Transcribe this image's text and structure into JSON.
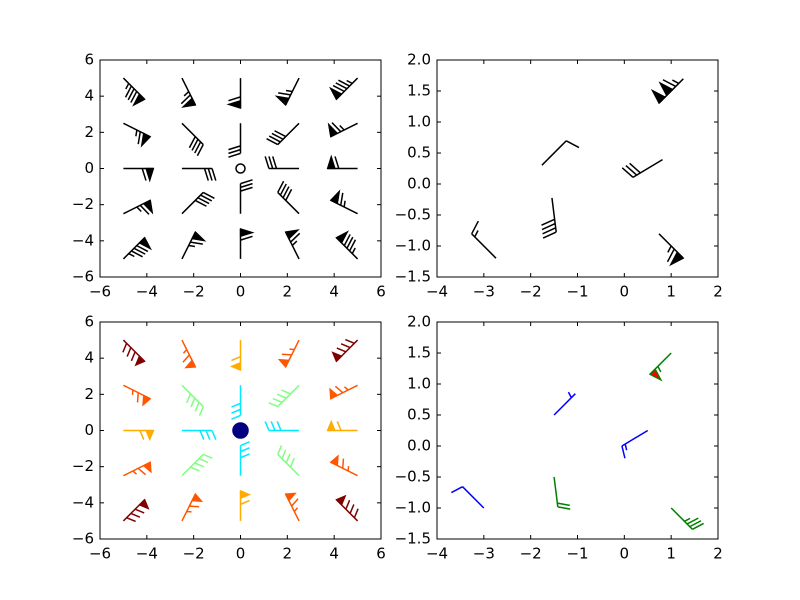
{
  "chart_data": [
    {
      "type": "barbs",
      "pivot": "tip",
      "length": 7,
      "color": "#000000",
      "flagcolor": "#000000",
      "rounding": true,
      "fill_empty": false,
      "flip": false,
      "sizes": {
        "spacing": 0.125,
        "height": 0.4,
        "width": 0.25,
        "emptybarb": 0.15
      },
      "increments": {
        "half": 5,
        "full": 10,
        "flag": 50
      },
      "x": [
        -5,
        -2.5,
        0,
        2.5,
        5,
        -5,
        -2.5,
        0,
        2.5,
        5,
        -5,
        -2.5,
        0,
        2.5,
        5,
        -5,
        -2.5,
        0,
        2.5,
        5,
        -5,
        -2.5,
        0,
        2.5,
        5
      ],
      "y": [
        -5,
        -5,
        -5,
        -5,
        -5,
        -2.5,
        -2.5,
        -2.5,
        -2.5,
        -2.5,
        0,
        0,
        0,
        0,
        0,
        2.5,
        2.5,
        2.5,
        2.5,
        2.5,
        5,
        5,
        5,
        5,
        5
      ],
      "u": [
        -60,
        -30,
        0,
        30,
        60,
        -60,
        -30,
        0,
        30,
        60,
        -60,
        -30,
        0,
        30,
        60,
        -60,
        -30,
        0,
        30,
        60,
        -60,
        -30,
        0,
        30,
        60
      ],
      "v": [
        -60,
        -60,
        -60,
        -60,
        -60,
        -30,
        -30,
        -30,
        -30,
        -30,
        0,
        0,
        0,
        0,
        0,
        30,
        30,
        30,
        30,
        30,
        60,
        60,
        60,
        60,
        60
      ],
      "xlim": [
        -6,
        6
      ],
      "ylim": [
        -6,
        6
      ],
      "xticks": [
        {
          "value": -6,
          "label": "−6"
        },
        {
          "value": -4,
          "label": "−4"
        },
        {
          "value": -2,
          "label": "−2"
        },
        0,
        2,
        4,
        6
      ],
      "yticks": [
        {
          "value": -6,
          "label": "−6"
        },
        {
          "value": -4,
          "label": "−4"
        },
        {
          "value": -2,
          "label": "−2"
        },
        0,
        2,
        4,
        6
      ]
    },
    {
      "type": "barbs",
      "pivot": "middle",
      "length": 8,
      "color": "#000000",
      "flagcolor": "#000000",
      "rounding": true,
      "fill_empty": false,
      "flip": false,
      "sizes": {
        "spacing": 0.125,
        "height": 0.4,
        "width": 0.25,
        "emptybarb": 0.15
      },
      "increments": {
        "half": 5,
        "full": 10,
        "flag": 50
      },
      "x": [
        -1.5,
        1,
        -3,
        1,
        0.5,
        -1.5
      ],
      "y": [
        0.5,
        -1,
        -1,
        1.5,
        0.25,
        -0.5
      ],
      "u": [
        -6,
        -46,
        11,
        80,
        25,
        -5
      ],
      "v": [
        -6,
        46,
        -11,
        80,
        15,
        40
      ],
      "xlim": [
        -4,
        2
      ],
      "ylim": [
        -1.5,
        2.0
      ],
      "xticks": [
        {
          "value": -4,
          "label": "−4"
        },
        {
          "value": -3,
          "label": "−3"
        },
        {
          "value": -2,
          "label": "−2"
        },
        {
          "value": -1,
          "label": "−1"
        },
        0,
        1,
        2
      ],
      "yticks": [
        {
          "value": -1.5,
          "label": "−1.5"
        },
        {
          "value": -1.0,
          "label": "−1.0"
        },
        {
          "value": -0.5,
          "label": "−0.5"
        },
        {
          "value": 0,
          "label": "0.0"
        },
        0.5,
        {
          "value": 1.0,
          "label": "1.0"
        },
        1.5,
        {
          "value": 2.0,
          "label": "2.0"
        }
      ]
    },
    {
      "type": "barbs",
      "pivot": "tip",
      "length": 7,
      "colormap": "jet",
      "rounding": false,
      "fill_empty": true,
      "flip": false,
      "sizes": {
        "spacing": 0.2,
        "height": 0.3,
        "width": 0.25,
        "emptybarb": 0.25
      },
      "increments": {
        "half": 5,
        "full": 10,
        "flag": 50
      },
      "x": [
        -5,
        -2.5,
        0,
        2.5,
        5,
        -5,
        -2.5,
        0,
        2.5,
        5,
        -5,
        -2.5,
        0,
        2.5,
        5,
        -5,
        -2.5,
        0,
        2.5,
        5,
        -5,
        -2.5,
        0,
        2.5,
        5
      ],
      "y": [
        -5,
        -5,
        -5,
        -5,
        -5,
        -2.5,
        -2.5,
        -2.5,
        -2.5,
        -2.5,
        0,
        0,
        0,
        0,
        0,
        2.5,
        2.5,
        2.5,
        2.5,
        2.5,
        5,
        5,
        5,
        5,
        5
      ],
      "u": [
        -60,
        -30,
        0,
        30,
        60,
        -60,
        -30,
        0,
        30,
        60,
        -60,
        -30,
        0,
        30,
        60,
        -60,
        -30,
        0,
        30,
        60,
        -60,
        -30,
        0,
        30,
        60
      ],
      "v": [
        -60,
        -60,
        -60,
        -60,
        -60,
        -30,
        -30,
        -30,
        -30,
        -30,
        0,
        0,
        0,
        0,
        0,
        30,
        30,
        30,
        30,
        30,
        60,
        60,
        60,
        60,
        60
      ],
      "xlim": [
        -6,
        6
      ],
      "ylim": [
        -6,
        6
      ],
      "xticks": [
        {
          "value": -6,
          "label": "−6"
        },
        {
          "value": -4,
          "label": "−4"
        },
        {
          "value": -2,
          "label": "−2"
        },
        0,
        2,
        4,
        6
      ],
      "yticks": [
        {
          "value": -6,
          "label": "−6"
        },
        {
          "value": -4,
          "label": "−4"
        },
        {
          "value": -2,
          "label": "−2"
        },
        0,
        2,
        4,
        6
      ]
    },
    {
      "type": "barbs",
      "pivot": "tip",
      "length": 7,
      "barbcolors": [
        "#0000ff",
        "#008000"
      ],
      "flagcolor": "#ff0000",
      "rounding": true,
      "fill_empty": false,
      "flip": true,
      "sizes": {
        "spacing": 0.125,
        "height": 0.4,
        "width": 0.25,
        "emptybarb": 0.15
      },
      "increments": {
        "half": 10,
        "full": 20,
        "flag": 100
      },
      "x": [
        -1.5,
        1,
        -3,
        1,
        0.5,
        -1.5
      ],
      "y": [
        0.5,
        -1,
        -1,
        1.5,
        0.25,
        -0.5
      ],
      "u": [
        -6,
        -46,
        11,
        80,
        25,
        -5
      ],
      "v": [
        -6,
        46,
        -11,
        80,
        15,
        40
      ],
      "xlim": [
        -4,
        2
      ],
      "ylim": [
        -1.5,
        2.0
      ],
      "xticks": [
        {
          "value": -4,
          "label": "−4"
        },
        {
          "value": -3,
          "label": "−3"
        },
        {
          "value": -2,
          "label": "−2"
        },
        {
          "value": -1,
          "label": "−1"
        },
        0,
        1,
        2
      ],
      "yticks": [
        {
          "value": -1.5,
          "label": "−1.5"
        },
        {
          "value": -1.0,
          "label": "−1.0"
        },
        {
          "value": -0.5,
          "label": "−0.5"
        },
        {
          "value": 0,
          "label": "0.0"
        },
        0.5,
        {
          "value": 1.0,
          "label": "1.0"
        },
        1.5,
        {
          "value": 2.0,
          "label": "2.0"
        }
      ]
    }
  ]
}
